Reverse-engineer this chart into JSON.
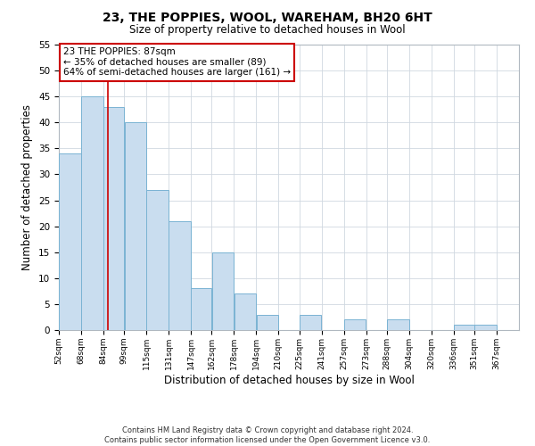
{
  "title": "23, THE POPPIES, WOOL, WAREHAM, BH20 6HT",
  "subtitle": "Size of property relative to detached houses in Wool",
  "xlabel": "Distribution of detached houses by size in Wool",
  "ylabel": "Number of detached properties",
  "bar_left_edges": [
    52,
    68,
    84,
    99,
    115,
    131,
    147,
    162,
    178,
    194,
    210,
    225,
    241,
    257,
    273,
    288,
    304,
    320,
    336,
    351
  ],
  "bar_heights": [
    34,
    45,
    43,
    40,
    27,
    21,
    8,
    15,
    7,
    3,
    0,
    3,
    0,
    2,
    0,
    2,
    0,
    0,
    1,
    1
  ],
  "bar_widths": [
    16,
    16,
    15,
    16,
    16,
    16,
    15,
    16,
    16,
    16,
    15,
    16,
    16,
    16,
    15,
    16,
    16,
    16,
    15,
    16
  ],
  "bar_color": "#c9ddef",
  "bar_edge_color": "#7ab3d3",
  "tick_labels": [
    "52sqm",
    "68sqm",
    "84sqm",
    "99sqm",
    "115sqm",
    "131sqm",
    "147sqm",
    "162sqm",
    "178sqm",
    "194sqm",
    "210sqm",
    "225sqm",
    "241sqm",
    "257sqm",
    "273sqm",
    "288sqm",
    "304sqm",
    "320sqm",
    "336sqm",
    "351sqm",
    "367sqm"
  ],
  "tick_positions": [
    52,
    68,
    84,
    99,
    115,
    131,
    147,
    162,
    178,
    194,
    210,
    225,
    241,
    257,
    273,
    288,
    304,
    320,
    336,
    351,
    367
  ],
  "ylim": [
    0,
    55
  ],
  "yticks": [
    0,
    5,
    10,
    15,
    20,
    25,
    30,
    35,
    40,
    45,
    50,
    55
  ],
  "xlim_left": 52,
  "xlim_right": 383,
  "property_line_x": 87,
  "property_line_color": "#cc0000",
  "annotation_title": "23 THE POPPIES: 87sqm",
  "annotation_line1": "← 35% of detached houses are smaller (89)",
  "annotation_line2": "64% of semi-detached houses are larger (161) →",
  "footer_line1": "Contains HM Land Registry data © Crown copyright and database right 2024.",
  "footer_line2": "Contains public sector information licensed under the Open Government Licence v3.0.",
  "background_color": "#ffffff",
  "grid_color": "#d0d8e0"
}
